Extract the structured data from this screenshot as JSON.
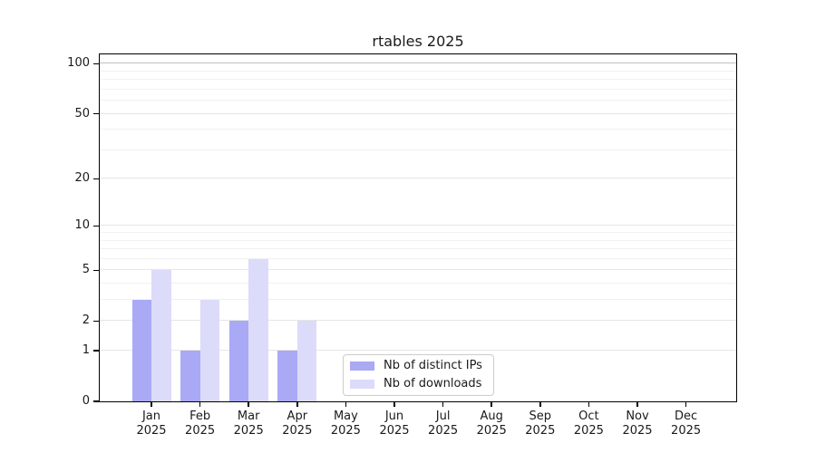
{
  "title": "rtables 2025",
  "chart_data": {
    "type": "bar",
    "categories": [
      "Jan",
      "Feb",
      "Mar",
      "Apr",
      "May",
      "Jun",
      "Jul",
      "Aug",
      "Sep",
      "Oct",
      "Nov",
      "Dec"
    ],
    "x_year_label": "2025",
    "series": [
      {
        "name": "Nb of distinct IPs",
        "color": "#a9a9f6",
        "values": [
          3,
          1,
          2,
          1,
          0,
          0,
          0,
          0,
          0,
          0,
          0,
          0
        ]
      },
      {
        "name": "Nb of downloads",
        "color": "#dcdbf9",
        "values": [
          5,
          3,
          6,
          2,
          0,
          0,
          0,
          0,
          0,
          0,
          0,
          0
        ]
      }
    ],
    "title": "rtables 2025",
    "xlabel": "",
    "ylabel": "",
    "yscale": "log1p",
    "ylim": [
      0,
      114
    ],
    "y_major_ticks": [
      0,
      1,
      2,
      5,
      10,
      20,
      50,
      100
    ],
    "y_minor_ticks": [
      3,
      4,
      6,
      7,
      8,
      9,
      30,
      40,
      60,
      70,
      80,
      90
    ],
    "grid": "horizontal",
    "legend_position": "inside-bottom-center",
    "legend_entries": [
      "Nb of distinct IPs",
      "Nb of downloads"
    ]
  },
  "colors": {
    "bar_distinct_ips": "#a9a9f6",
    "bar_downloads": "#dcdbf9",
    "grid_major": "#e6e6e6",
    "grid_minor": "#f1f1f1",
    "grid_top_100": "#c2c2c2",
    "spine": "#000000",
    "text": "#1a1a1a",
    "legend_border": "#cccccc",
    "background": "#ffffff"
  }
}
